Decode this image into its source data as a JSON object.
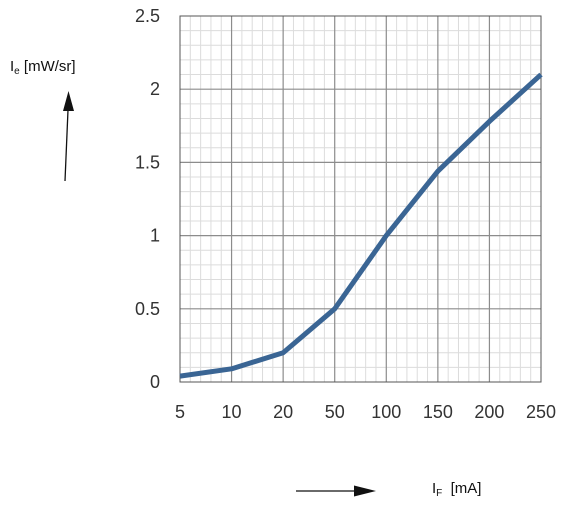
{
  "chart_data": {
    "type": "line",
    "ylabel": {
      "symbol": "I",
      "subscript": "e",
      "unit": "[mW/sr]"
    },
    "xlabel": {
      "symbol": "I",
      "subscript": "F",
      "unit": "[mA]"
    },
    "x_ticks": [
      "5",
      "10",
      "20",
      "50",
      "100",
      "150",
      "200",
      "250"
    ],
    "y_ticks": [
      "0",
      "0.5",
      "1",
      "1.5",
      "2",
      "2.5"
    ],
    "ylim": [
      0,
      2.5
    ],
    "x_scale": "categorical (evenly spaced ticks)",
    "grid": true,
    "series": [
      {
        "color": "#3a6594",
        "x": [
          "5",
          "10",
          "20",
          "50",
          "100",
          "150",
          "200",
          "250"
        ],
        "y": [
          0.04,
          0.09,
          0.2,
          0.5,
          1.0,
          1.44,
          1.78,
          2.1
        ]
      }
    ]
  }
}
